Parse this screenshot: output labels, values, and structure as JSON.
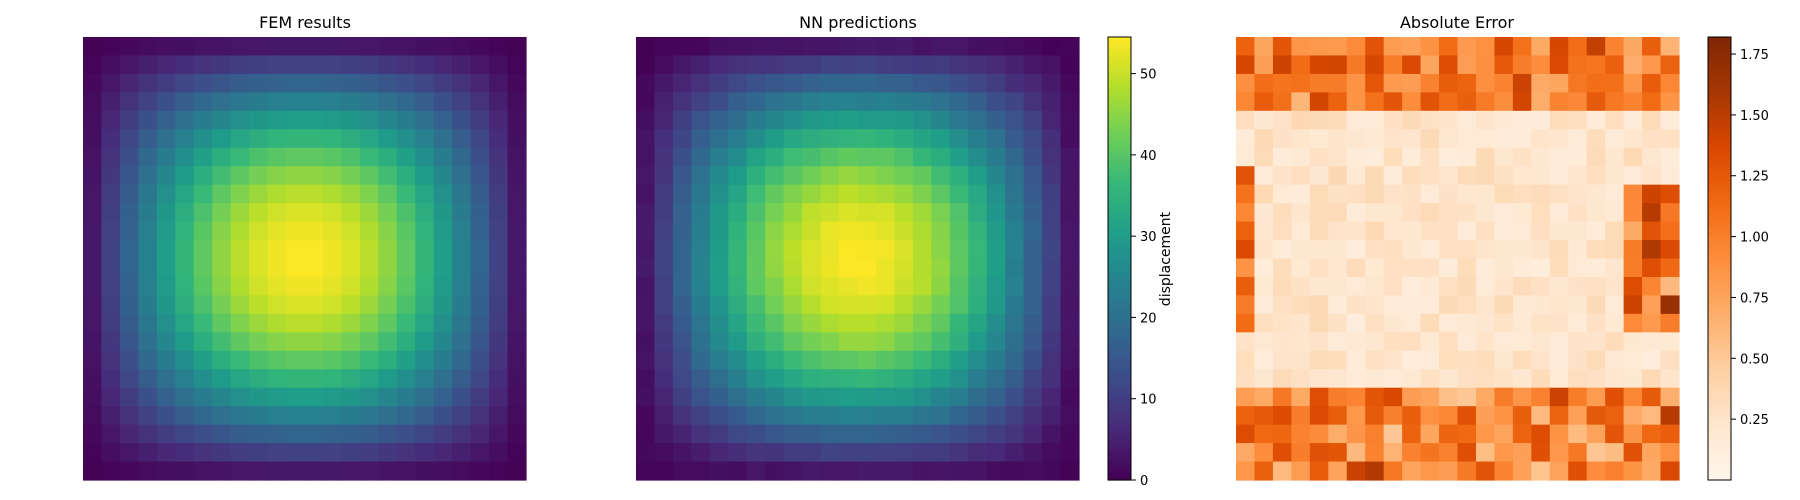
{
  "chart_data": [
    {
      "type": "heatmap",
      "title": "FEM results",
      "grid_size": [
        24,
        24
      ],
      "colormap": "viridis",
      "value_range": [
        0,
        54.5
      ],
      "field_model": "value(i,j) = 54.5 * sin(pi*(i+0.5)/24) * sin(pi*(j+0.5)/24) (smooth peak at center)",
      "axes_visible": false,
      "grid": false
    },
    {
      "type": "heatmap",
      "title": "NN predictions",
      "grid_size": [
        24,
        24
      ],
      "colormap": "viridis",
      "value_range": [
        0,
        54.5
      ],
      "colorbar": {
        "label": "displacement",
        "ticks": [
          0,
          10,
          20,
          30,
          40,
          50
        ]
      },
      "axes_visible": false,
      "grid": false
    },
    {
      "type": "heatmap",
      "title": "Absolute Error",
      "grid_size": [
        24,
        24
      ],
      "colormap": "Oranges",
      "value_range": [
        0,
        1.82
      ],
      "colorbar": {
        "label": "",
        "ticks": [
          0.25,
          0.5,
          0.75,
          1.0,
          1.25,
          1.5,
          1.75
        ],
        "tick_labels": [
          "0.25",
          "0.50",
          "0.75",
          "1.00",
          "1.25",
          "1.50",
          "1.75"
        ]
      },
      "pattern": "errors highest along the top rows, bottom rows, and left/right edge columns; lowest in the central region",
      "axes_visible": false,
      "grid": false
    }
  ]
}
